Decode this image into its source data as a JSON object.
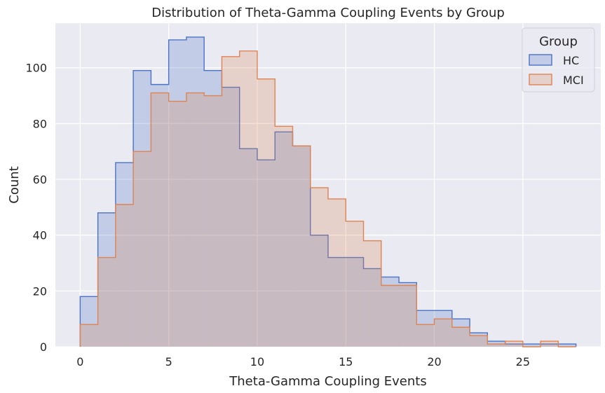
{
  "chart_data": {
    "type": "histogram",
    "title": "Distribution of Theta-Gamma Coupling Events by Group",
    "xlabel": "Theta-Gamma Coupling Events",
    "ylabel": "Count",
    "xlim": [
      -1.4,
      29.4
    ],
    "ylim": [
      0,
      116
    ],
    "xticks": [
      "0",
      "5",
      "10",
      "15",
      "20",
      "25"
    ],
    "yticks": [
      "0",
      "20",
      "40",
      "60",
      "80",
      "100"
    ],
    "grid": true,
    "legend": {
      "title": "Group",
      "placement": "top-right"
    },
    "bin_edges": [
      0,
      1,
      2,
      3,
      4,
      5,
      6,
      7,
      8,
      9,
      10,
      11,
      12,
      13,
      14,
      15,
      16,
      17,
      18,
      19,
      20,
      21,
      22,
      23,
      24,
      25,
      26,
      27,
      28
    ],
    "series": [
      {
        "name": "HC",
        "color": "#4c72c4",
        "fill": "rgba(76,114,196,0.25)",
        "values": [
          18,
          48,
          66,
          99,
          94,
          110,
          111,
          99,
          93,
          71,
          67,
          77,
          72,
          40,
          32,
          32,
          28,
          25,
          23,
          13,
          13,
          10,
          5,
          2,
          1,
          1,
          1,
          1
        ]
      },
      {
        "name": "MCI",
        "color": "#dd8452",
        "fill": "rgba(221,132,82,0.25)",
        "values": [
          8,
          32,
          51,
          70,
          91,
          88,
          91,
          90,
          104,
          106,
          96,
          79,
          72,
          57,
          53,
          45,
          38,
          22,
          22,
          8,
          10,
          7,
          4,
          1,
          2,
          0,
          2,
          0
        ]
      }
    ]
  }
}
